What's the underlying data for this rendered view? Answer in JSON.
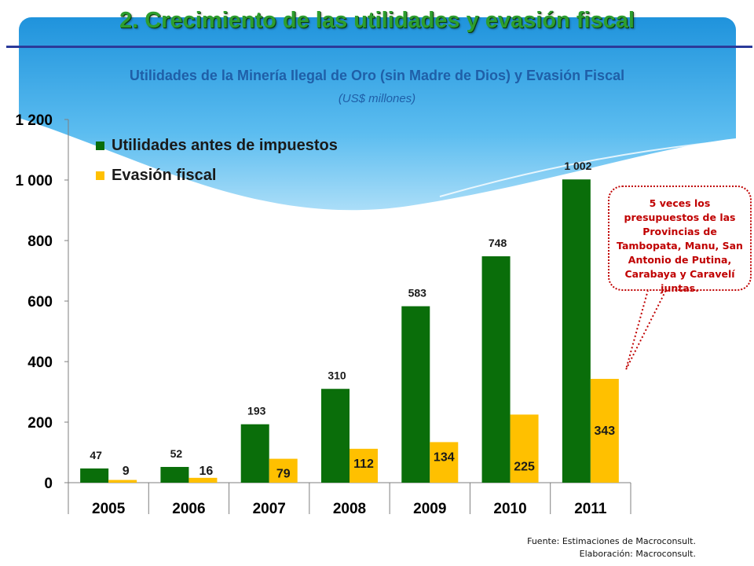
{
  "slide": {
    "title": "2.  Crecimiento de las utilidades y evasión fiscal",
    "title_color": "#2e9e2e",
    "rule_color": "#2b3a9a",
    "bg_color": "#3aa8e8"
  },
  "chart_data": {
    "type": "bar",
    "title": "Utilidades de la Minería Ilegal de Oro (sin Madre de Dios) y Evasión Fiscal",
    "subtitle": "(US$ millones)",
    "categories": [
      "2005",
      "2006",
      "2007",
      "2008",
      "2009",
      "2010",
      "2011"
    ],
    "series": [
      {
        "name": "Utilidades antes de impuestos",
        "color": "#0a6e0a",
        "values": [
          47,
          52,
          193,
          310,
          583,
          748,
          1002
        ],
        "labels": [
          "47",
          "52",
          "193",
          "310",
          "583",
          "748",
          "1 002"
        ]
      },
      {
        "name": "Evasión fiscal",
        "color": "#ffc000",
        "values": [
          9,
          16,
          79,
          112,
          134,
          225,
          343
        ],
        "labels": [
          "9",
          "16",
          "79",
          "112",
          "134",
          "225",
          "343"
        ]
      }
    ],
    "ylim": [
      0,
      1200
    ],
    "yticks": [
      0,
      200,
      400,
      600,
      800,
      1000,
      1200
    ],
    "ytick_labels": [
      "0",
      "200",
      "400",
      "600",
      "800",
      "1 000",
      "1 200"
    ],
    "legend_position": "top-left",
    "grid": false,
    "title_color": "#1f5fa8",
    "subtitle_color": "#1f5fa8"
  },
  "callout": {
    "text": "5 veces los presupuestos de las Provincias de Tambopata, Manu, San Antonio de Putina, Carabaya y Caravelí juntas.",
    "color": "#c00000"
  },
  "footer": {
    "source": "Fuente: Estimaciones de Macroconsult.",
    "elaboration": "Elaboración: Macroconsult."
  }
}
